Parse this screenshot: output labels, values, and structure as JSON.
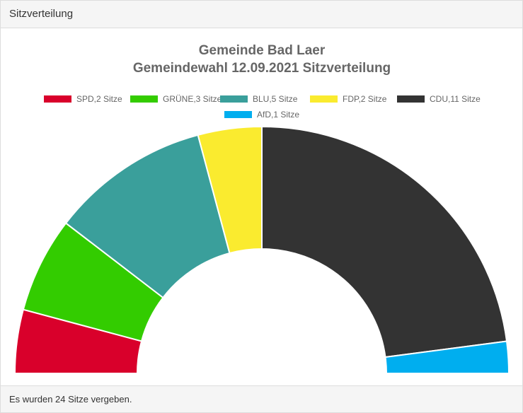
{
  "panel": {
    "header": "Sitzverteilung",
    "footer": "Es wurden 24 Sitze vergeben."
  },
  "chart_data": {
    "type": "pie",
    "variant": "half-doughnut",
    "title": "Gemeinde Bad Laer",
    "subtitle": "Gemeindewahl 12.09.2021 Sitzverteilung",
    "legend_position": "top",
    "categories": [
      "SPD,2 Sitze",
      "GRÜNE,3 Sitze",
      "BLU,5 Sitze",
      "FDP,2 Sitze",
      "CDU,11 Sitze",
      "AfD,1 Sitze"
    ],
    "values": [
      2,
      3,
      5,
      2,
      11,
      1
    ],
    "colors": [
      "#d9002b",
      "#33cc00",
      "#3a9f9b",
      "#faeb2f",
      "#333333",
      "#00aeef"
    ]
  }
}
